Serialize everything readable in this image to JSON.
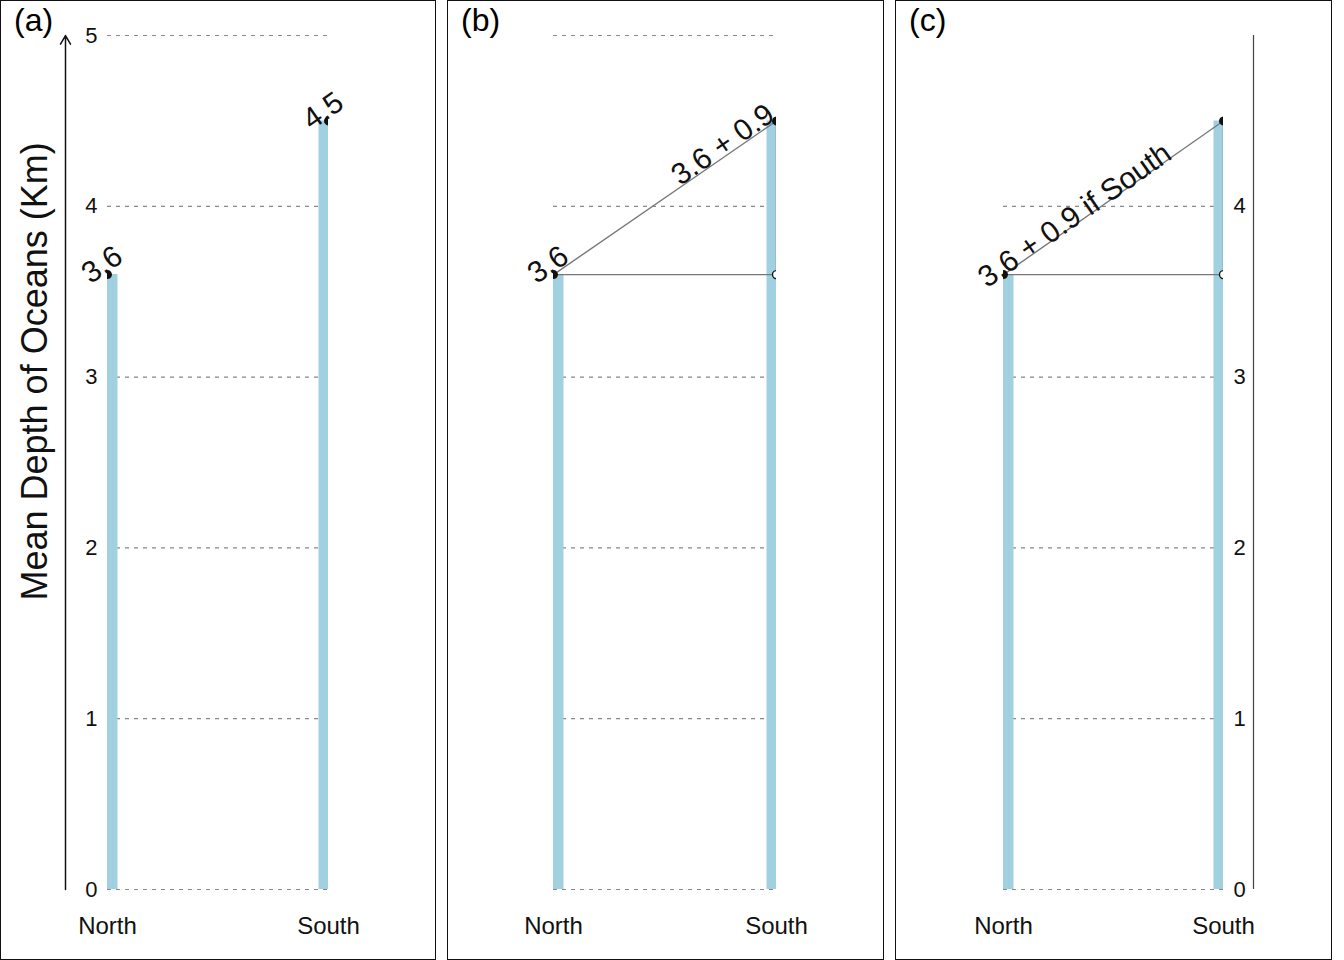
{
  "chart_data": [
    {
      "type": "bar",
      "title": "(a)",
      "y_label": "Mean Depth of Oceans (Km)",
      "categories": [
        "North",
        "South"
      ],
      "values": [
        3.6,
        4.5
      ],
      "color": "#a1d0e0",
      "ylim": [
        0,
        5
      ],
      "yticks": [
        0,
        1,
        2,
        3,
        4,
        5
      ],
      "grid": true,
      "data_labels": true
    },
    {
      "type": "bar",
      "title": "(b)",
      "categories": [
        "North",
        "South"
      ],
      "values": [
        3.6,
        4.5
      ],
      "value_labels": [
        "3.6",
        "3.6 + 0.9"
      ],
      "color": "#a1d0e0",
      "ylim": [
        0,
        5
      ],
      "yticks": [
        0,
        1,
        2,
        3,
        4,
        5
      ],
      "grid": true,
      "data_labels": true,
      "tick_labels": "x"
    },
    {
      "type": "bar",
      "title": "(c)",
      "annotation": "3.6 + 0.9 if South",
      "categories": [
        "North",
        "South"
      ],
      "values": [
        3.6,
        4.5
      ],
      "color": "#a1d0e0",
      "ylim": [
        0,
        5
      ],
      "yticks": [
        0,
        1,
        2,
        3,
        4
      ],
      "grid": true
    }
  ]
}
